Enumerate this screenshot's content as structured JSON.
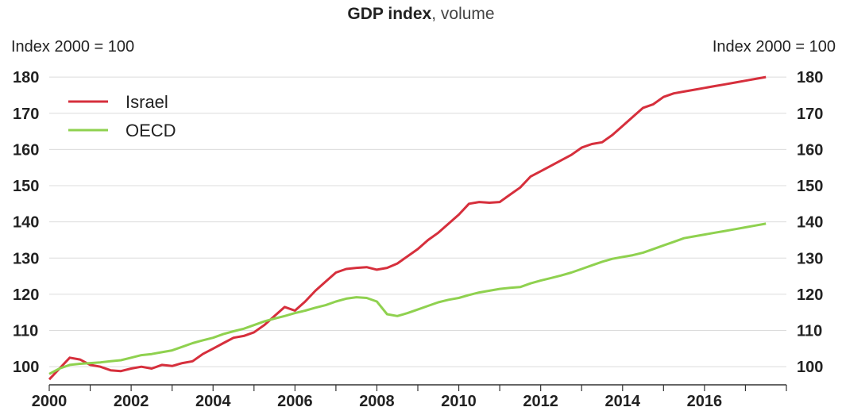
{
  "chart_data": {
    "type": "line",
    "title_bold": "GDP index",
    "title_rest": ", volume",
    "ylabel_left": "Index 2000 = 100",
    "ylabel_right": "Index 2000 = 100",
    "ylim": [
      95,
      182
    ],
    "yticks": [
      100,
      110,
      120,
      130,
      140,
      150,
      160,
      170,
      180
    ],
    "xticks": [
      2000,
      2002,
      2004,
      2006,
      2008,
      2010,
      2012,
      2014,
      2016
    ],
    "xlim": [
      2000.0,
      2018.0
    ],
    "grid": true,
    "legend_position": "top-left",
    "colors": {
      "Israel": "#d62f3c",
      "OECD": "#8fd14f",
      "grid": "#dcdcdc",
      "axis": "#333333"
    },
    "series": [
      {
        "name": "Israel",
        "x": [
          2000.0,
          2000.25,
          2000.5,
          2000.75,
          2001.0,
          2001.25,
          2001.5,
          2001.75,
          2002.0,
          2002.25,
          2002.5,
          2002.75,
          2003.0,
          2003.25,
          2003.5,
          2003.75,
          2004.0,
          2004.25,
          2004.5,
          2004.75,
          2005.0,
          2005.25,
          2005.5,
          2005.75,
          2006.0,
          2006.25,
          2006.5,
          2006.75,
          2007.0,
          2007.25,
          2007.5,
          2007.75,
          2008.0,
          2008.25,
          2008.5,
          2008.75,
          2009.0,
          2009.25,
          2009.5,
          2009.75,
          2010.0,
          2010.25,
          2010.5,
          2010.75,
          2011.0,
          2011.25,
          2011.5,
          2011.75,
          2012.0,
          2012.25,
          2012.5,
          2012.75,
          2013.0,
          2013.25,
          2013.5,
          2013.75,
          2014.0,
          2014.25,
          2014.5,
          2014.75,
          2015.0,
          2015.25,
          2015.5,
          2015.75,
          2016.0,
          2016.25,
          2016.5,
          2016.75,
          2017.0,
          2017.25,
          2017.5
        ],
        "values": [
          96.5,
          99.5,
          102.5,
          102.0,
          100.5,
          100.0,
          99.0,
          98.8,
          99.5,
          100.0,
          99.5,
          100.5,
          100.2,
          101.0,
          101.5,
          103.5,
          105.0,
          106.5,
          108.0,
          108.5,
          109.5,
          111.5,
          114.0,
          116.5,
          115.5,
          118.0,
          121.0,
          123.5,
          126.0,
          127.0,
          127.3,
          127.5,
          126.8,
          127.3,
          128.5,
          130.5,
          132.5,
          135.0,
          137.0,
          139.5,
          142.0,
          145.0,
          145.5,
          145.3,
          145.5,
          147.5,
          149.5,
          152.5,
          154.0,
          155.5,
          157.0,
          158.5,
          160.5,
          161.5,
          162.0,
          164.0,
          166.5,
          169.0,
          171.5,
          172.5,
          174.5,
          175.5,
          176.0,
          176.5,
          177.0,
          177.5,
          178.0,
          178.5,
          179.0,
          179.5,
          180.0
        ]
      },
      {
        "name": "OECD",
        "x": [
          2000.0,
          2000.25,
          2000.5,
          2000.75,
          2001.0,
          2001.25,
          2001.5,
          2001.75,
          2002.0,
          2002.25,
          2002.5,
          2002.75,
          2003.0,
          2003.25,
          2003.5,
          2003.75,
          2004.0,
          2004.25,
          2004.5,
          2004.75,
          2005.0,
          2005.25,
          2005.5,
          2005.75,
          2006.0,
          2006.25,
          2006.5,
          2006.75,
          2007.0,
          2007.25,
          2007.5,
          2007.75,
          2008.0,
          2008.25,
          2008.5,
          2008.75,
          2009.0,
          2009.25,
          2009.5,
          2009.75,
          2010.0,
          2010.25,
          2010.5,
          2010.75,
          2011.0,
          2011.25,
          2011.5,
          2011.75,
          2012.0,
          2012.25,
          2012.5,
          2012.75,
          2013.0,
          2013.25,
          2013.5,
          2013.75,
          2014.0,
          2014.25,
          2014.5,
          2014.75,
          2015.0,
          2015.25,
          2015.5,
          2015.75,
          2016.0,
          2016.25,
          2016.5,
          2016.75,
          2017.0,
          2017.25,
          2017.5
        ],
        "values": [
          98.0,
          99.5,
          100.5,
          100.8,
          101.0,
          101.2,
          101.5,
          101.8,
          102.5,
          103.2,
          103.5,
          104.0,
          104.5,
          105.5,
          106.5,
          107.3,
          108.0,
          109.0,
          109.8,
          110.5,
          111.5,
          112.5,
          113.3,
          114.0,
          114.8,
          115.5,
          116.3,
          117.0,
          118.0,
          118.8,
          119.2,
          119.0,
          118.0,
          114.5,
          114.0,
          114.8,
          115.8,
          116.8,
          117.8,
          118.5,
          119.0,
          119.8,
          120.5,
          121.0,
          121.5,
          121.8,
          122.0,
          123.0,
          123.8,
          124.5,
          125.2,
          126.0,
          127.0,
          128.0,
          129.0,
          129.8,
          130.3,
          130.8,
          131.5,
          132.5,
          133.5,
          134.5,
          135.5,
          136.0,
          136.5,
          137.0,
          137.5,
          138.0,
          138.5,
          139.0,
          139.5
        ]
      }
    ]
  }
}
